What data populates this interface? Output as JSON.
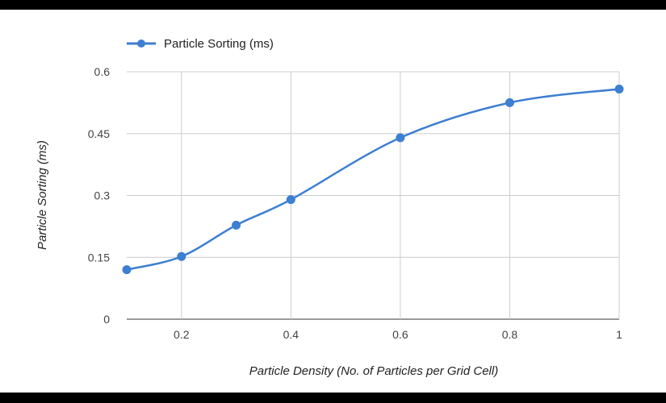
{
  "chart_data": {
    "type": "line",
    "title": "",
    "xlabel": "Particle Density (No. of Particles per Grid Cell)",
    "ylabel": "Particle Sorting (ms)",
    "xlim": [
      0.1,
      1
    ],
    "ylim": [
      0,
      0.6
    ],
    "x_ticks": [
      "0.2",
      "0.4",
      "0.6",
      "0.8",
      "1"
    ],
    "y_ticks": [
      "0",
      "0.15",
      "0.3",
      "0.45",
      "0.6"
    ],
    "grid": true,
    "legend_position": "top-left",
    "series": [
      {
        "name": "Particle Sorting (ms)",
        "color": "#3d7fd0",
        "smooth": true,
        "x": [
          0.1,
          0.2,
          0.3,
          0.4,
          0.6,
          0.8,
          1.0
        ],
        "y": [
          0.12,
          0.152,
          0.228,
          0.29,
          0.44,
          0.525,
          0.558
        ]
      }
    ]
  }
}
